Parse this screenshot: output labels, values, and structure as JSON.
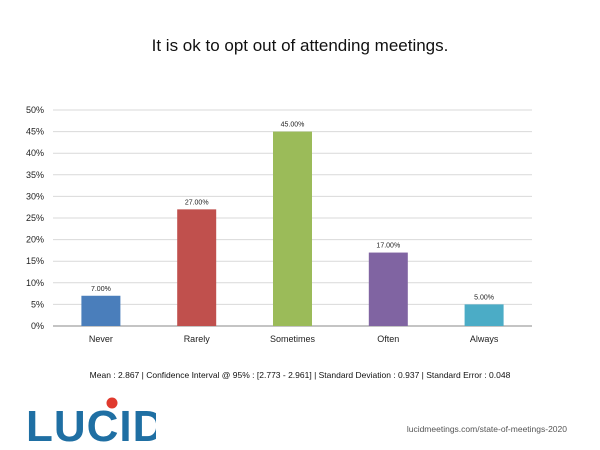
{
  "slide": {
    "title": "It is ok to opt out of attending meetings.",
    "stats": "Mean : 2.867  |  Confidence Interval @ 95% : [2.773 - 2.961]  |  Standard Deviation : 0.937  |  Standard Error : 0.048",
    "logo_text": "LUCID",
    "footer_url": "lucidmeetings.com/state-of-meetings-2020",
    "logo_color": "#1f6fa3",
    "logo_dot_color": "#e03a2e"
  },
  "chart_data": {
    "type": "bar",
    "title": "It is ok to opt out of attending meetings.",
    "xlabel": "",
    "ylabel": "",
    "categories": [
      "Never",
      "Rarely",
      "Sometimes",
      "Often",
      "Always"
    ],
    "values": [
      7.0,
      27.0,
      45.0,
      17.0,
      5.0
    ],
    "data_labels": [
      "7.00%",
      "27.00%",
      "45.00%",
      "17.00%",
      "5.00%"
    ],
    "colors": [
      "#4a7ebb",
      "#c0504d",
      "#9bbb59",
      "#8064a2",
      "#4bacc6"
    ],
    "ylim": [
      0,
      50
    ],
    "yticks": [
      "0%",
      "5%",
      "10%",
      "15%",
      "20%",
      "25%",
      "30%",
      "35%",
      "40%",
      "45%",
      "50%"
    ],
    "grid": true,
    "legend": "none"
  }
}
